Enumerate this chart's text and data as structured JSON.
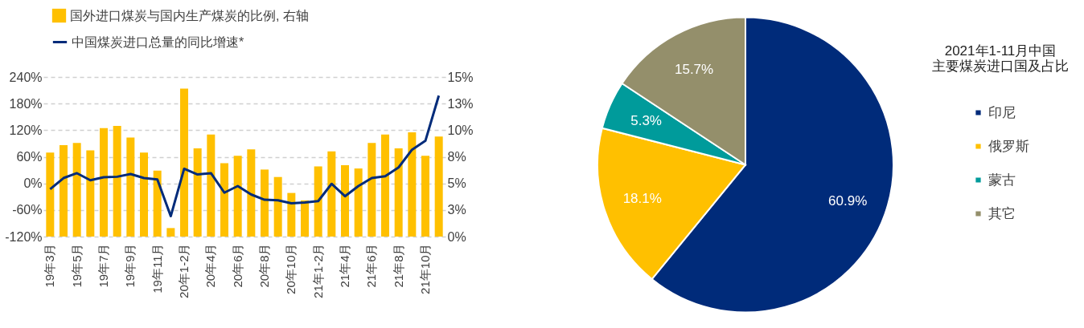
{
  "chart_data": [
    {
      "type": "bar",
      "categories": [
        "19年3月",
        null,
        "19年5月",
        null,
        "19年7月",
        null,
        "19年9月",
        null,
        "19年11月",
        null,
        "20年1-2月",
        null,
        "20年4月",
        null,
        "20年6月",
        null,
        "20年8月",
        null,
        "20年10月",
        null,
        "21年1-2月",
        null,
        "21年4月",
        null,
        "21年6月",
        null,
        "21年8月",
        null,
        "21年10月",
        null
      ],
      "series": [
        {
          "name": "国外进口煤炭与国内生产煤炭的比例, 右轴",
          "type": "bar",
          "axis": "y2",
          "color": "#ffc000",
          "values": [
            7.9,
            8.6,
            8.8,
            8.1,
            10.2,
            10.4,
            9.3,
            7.9,
            6.2,
            0.8,
            13.9,
            8.3,
            9.6,
            6.9,
            7.6,
            8.2,
            6.3,
            5.6,
            4.1,
            3.4,
            6.6,
            8.0,
            6.7,
            6.4,
            8.8,
            9.6,
            8.3,
            9.8,
            7.6,
            9.4
          ]
        },
        {
          "name": "中国煤炭进口总量的同比增速*",
          "type": "line",
          "color": "#002b7a",
          "values": [
            -13,
            12,
            23,
            7,
            14,
            15,
            21,
            12,
            9,
            -74,
            33,
            20,
            23,
            -21,
            -6,
            -25,
            -37,
            -38,
            -45,
            -43,
            -40,
            -1,
            -29,
            -6,
            12,
            16,
            36,
            76,
            96,
            198
          ]
        }
      ],
      "ylim": [
        -120,
        240
      ],
      "yticks": [
        {
          "value": -120,
          "label": "-120%"
        },
        {
          "value": -60,
          "label": "-60%"
        },
        {
          "value": 0,
          "label": "0%"
        },
        {
          "value": 60,
          "label": "60%"
        },
        {
          "value": 120,
          "label": "120%"
        },
        {
          "value": 180,
          "label": "180%"
        },
        {
          "value": 240,
          "label": "240%"
        }
      ],
      "y2lim": [
        0,
        15
      ],
      "y2ticks": [
        {
          "value": 0,
          "label": "0%"
        },
        {
          "value": 2.5,
          "label": "3%"
        },
        {
          "value": 5,
          "label": "5%"
        },
        {
          "value": 7.5,
          "label": "8%"
        },
        {
          "value": 10,
          "label": "10%"
        },
        {
          "value": 12.5,
          "label": "13%"
        },
        {
          "value": 15,
          "label": "15%"
        }
      ],
      "grid": "y",
      "legend": "top left"
    },
    {
      "type": "pie",
      "title": "2021年1-11月中国主要煤炭进口国及占比",
      "categories": [
        "印尼",
        "俄罗斯",
        "蒙古",
        "其它"
      ],
      "values": [
        60.9,
        18.1,
        5.3,
        15.7
      ],
      "colors": [
        "#002b7a",
        "#ffc000",
        "#009b9b",
        "#948f6b"
      ],
      "value_labels": [
        "60.9%",
        "18.1%",
        "5.3%",
        "15.7%"
      ],
      "legend": "right"
    }
  ]
}
